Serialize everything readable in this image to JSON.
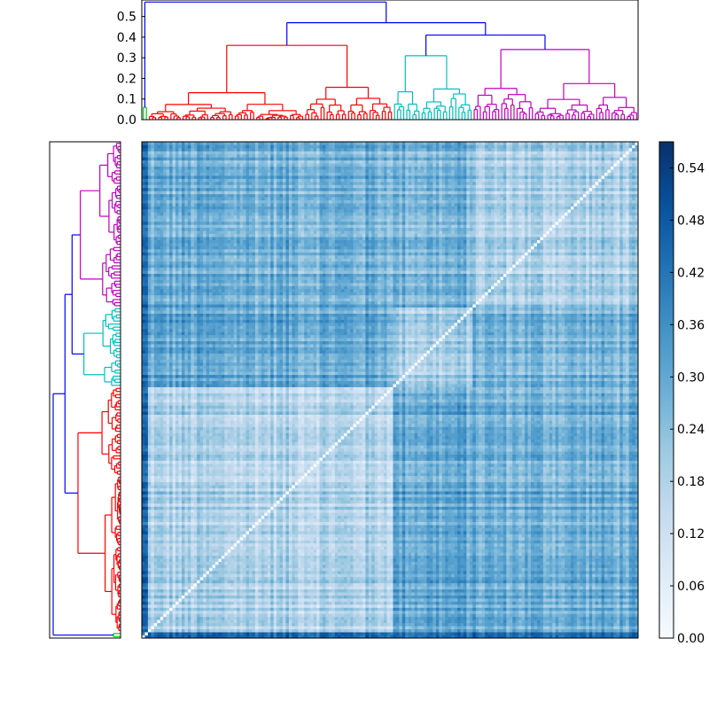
{
  "chart_data": [
    {
      "type": "dendrogram",
      "orientation": "top",
      "y_ticks": [
        "0.0",
        "0.1",
        "0.2",
        "0.3",
        "0.4",
        "0.5"
      ],
      "ylim": [
        0,
        0.58
      ],
      "clusters": [
        {
          "color": "#00cc00",
          "leaves": 2
        },
        {
          "color": "#ff0000",
          "leaves": 80
        },
        {
          "color": "#00bfbf",
          "leaves": 26
        },
        {
          "color": "#bf00bf",
          "leaves": 54
        }
      ],
      "top_merges": [
        {
          "height": 0.57,
          "color": "#0000ff"
        },
        {
          "height": 0.47,
          "color": "#0000ff"
        },
        {
          "height": 0.41,
          "color": "#0000ff"
        },
        {
          "height": 0.36,
          "color": "#ff0000"
        },
        {
          "height": 0.34,
          "color": "#bf00bf"
        },
        {
          "height": 0.31,
          "color": "#00bfbf"
        }
      ]
    },
    {
      "type": "dendrogram",
      "orientation": "left",
      "clusters": [
        {
          "color": "#bf00bf",
          "leaves": 54
        },
        {
          "color": "#00bfbf",
          "leaves": 26
        },
        {
          "color": "#ff0000",
          "leaves": 80
        },
        {
          "color": "#00cc00",
          "leaves": 2
        }
      ]
    },
    {
      "type": "heatmap",
      "n": 162,
      "colormap": "Blues",
      "diagonal": 0.0,
      "block_order": [
        "green",
        "red",
        "cyan",
        "magenta"
      ],
      "block_sizes": [
        2,
        80,
        26,
        54
      ],
      "block_means": [
        [
          0.36,
          0.42,
          0.4,
          0.4
        ],
        [
          0.42,
          0.16,
          0.28,
          0.26
        ],
        [
          0.4,
          0.28,
          0.18,
          0.25
        ],
        [
          0.4,
          0.26,
          0.25,
          0.17
        ]
      ]
    },
    {
      "type": "colorbar",
      "ticks": [
        "0.00",
        "0.06",
        "0.12",
        "0.18",
        "0.24",
        "0.30",
        "0.36",
        "0.42",
        "0.48",
        "0.54"
      ],
      "range": [
        0,
        0.57
      ]
    }
  ]
}
